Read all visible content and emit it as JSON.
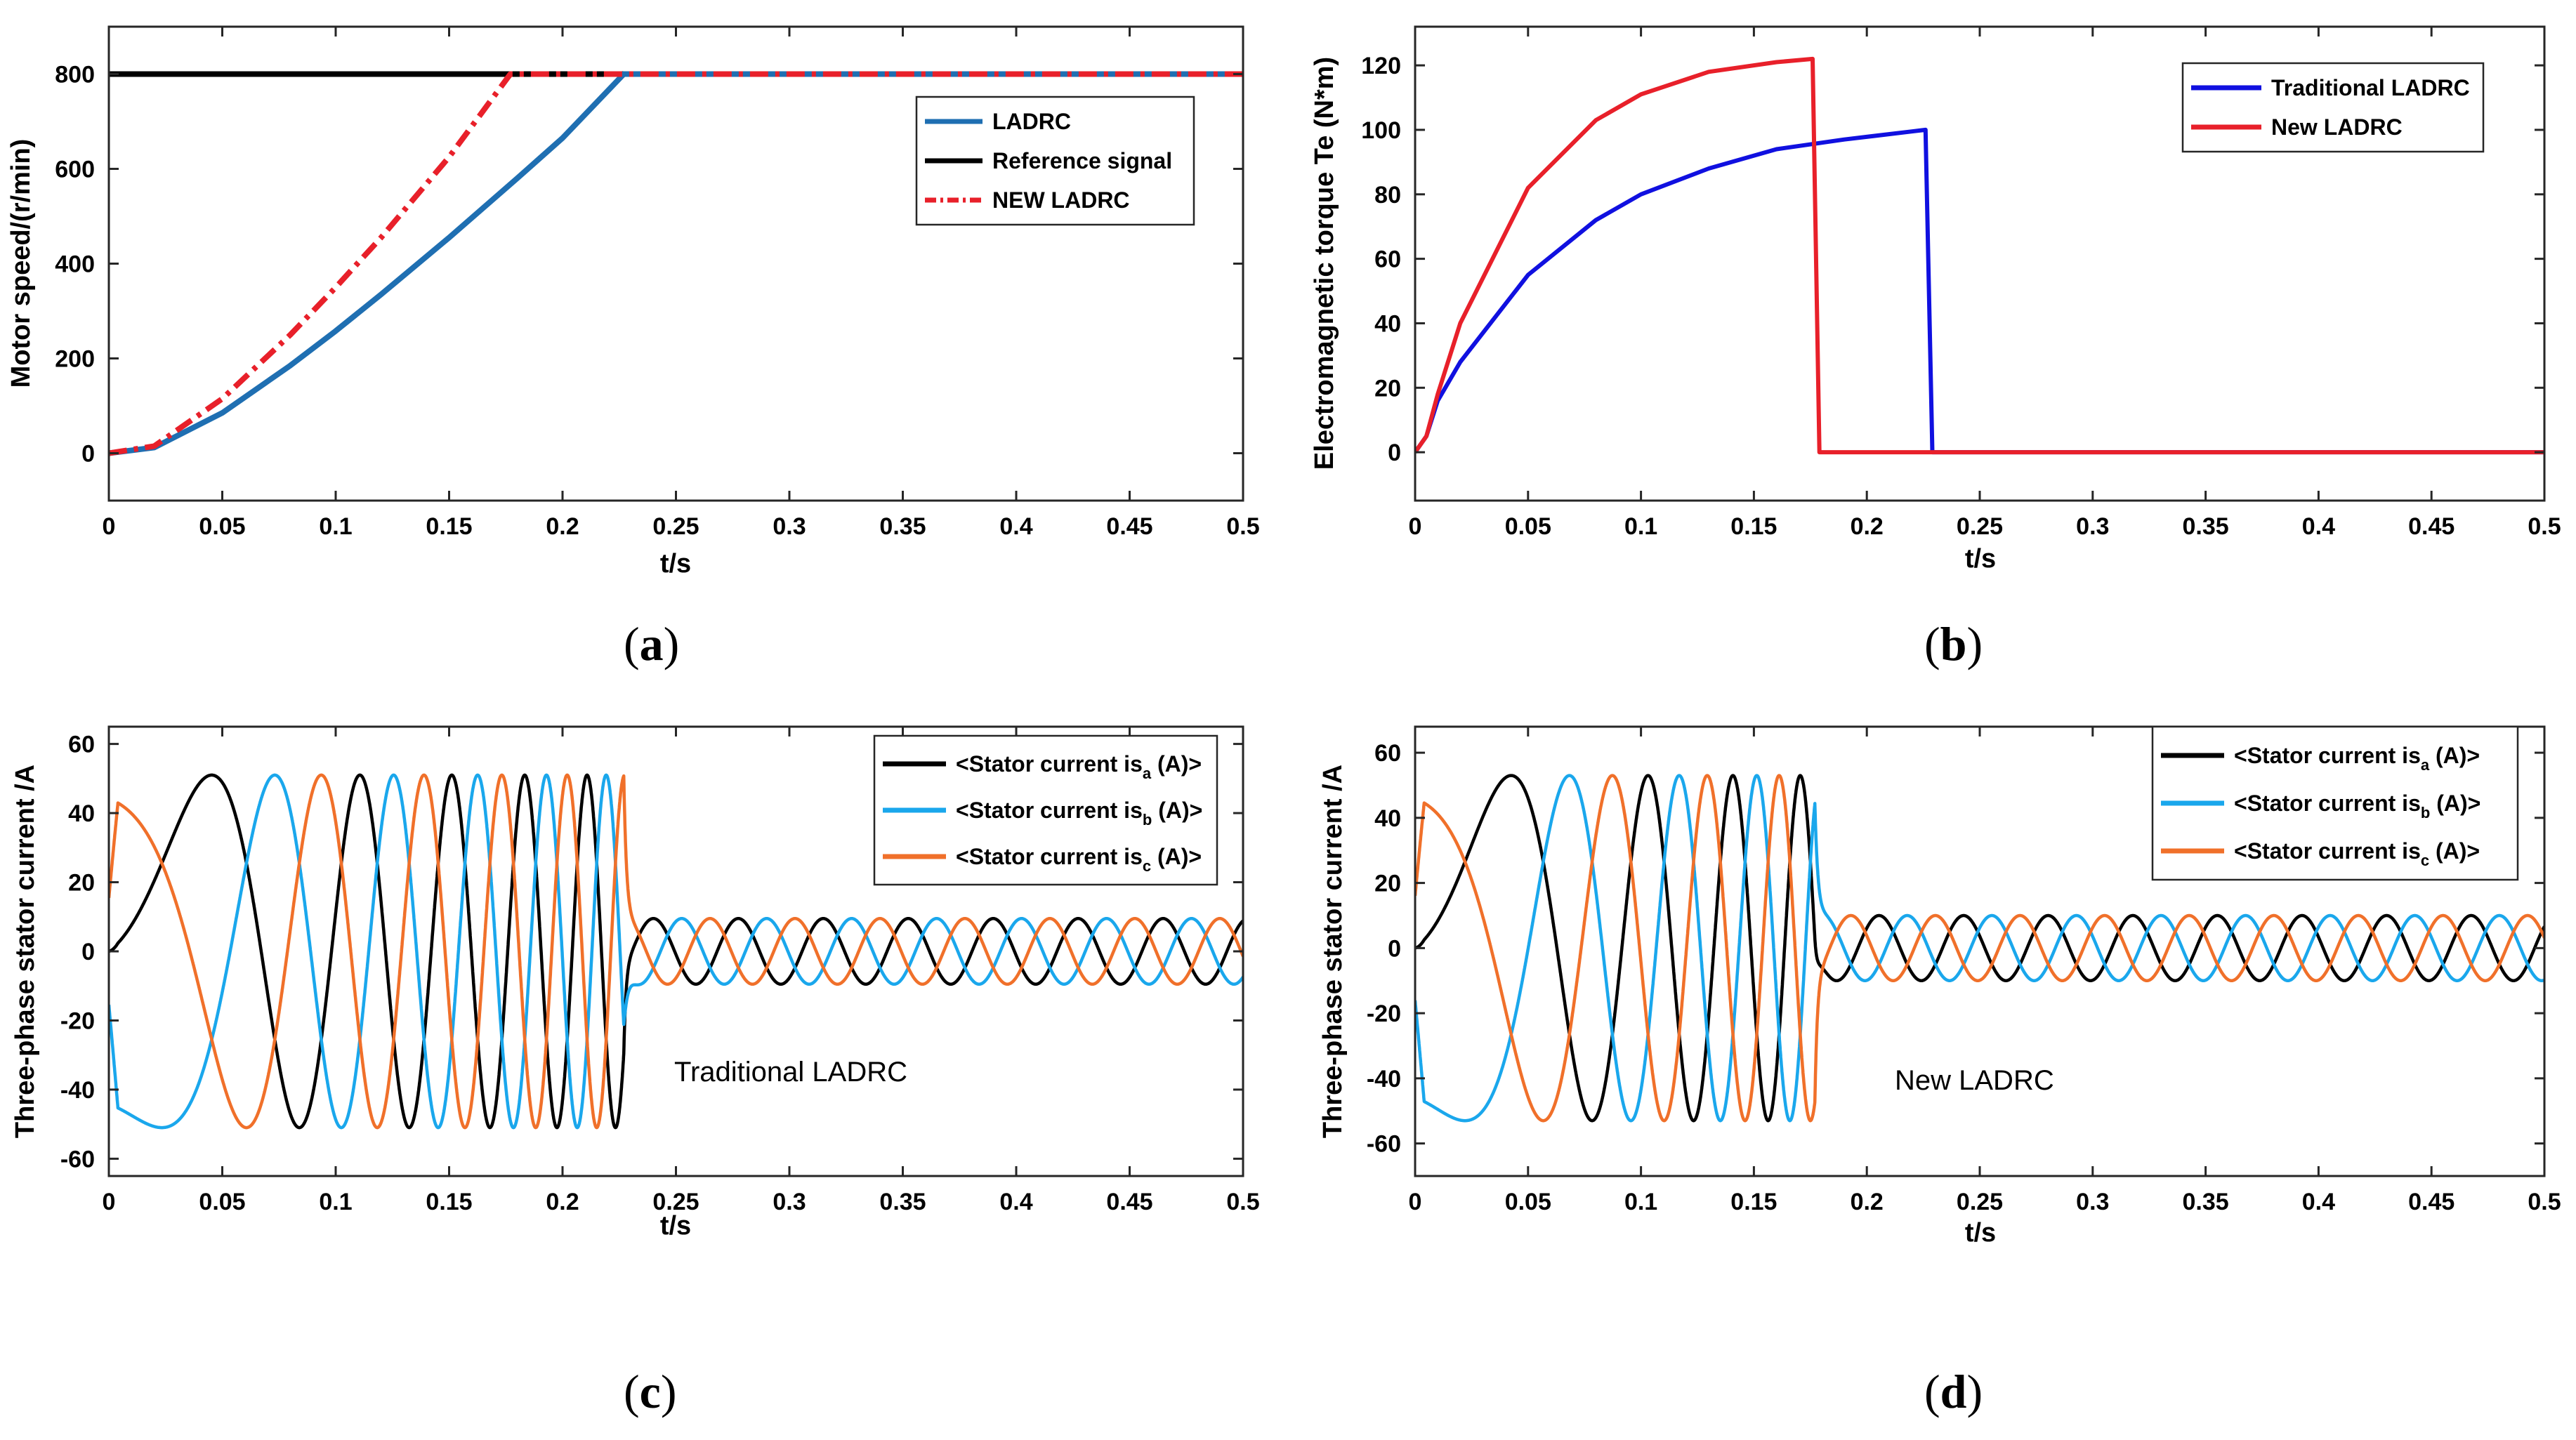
{
  "chart_data": [
    {
      "id": "a",
      "type": "line",
      "caption_letter": "a",
      "xlabel": "t/s",
      "ylabel": "Motor speed/(r/min)",
      "xlim": [
        0,
        0.5
      ],
      "ylim": [
        -100,
        900
      ],
      "xticks": [
        "0",
        "0.05",
        "0.1",
        "0.15",
        "0.2",
        "0.25",
        "0.3",
        "0.35",
        "0.4",
        "0.45",
        "0.5"
      ],
      "yticks": [
        "0",
        "200",
        "400",
        "600",
        "800"
      ],
      "legend_position": "top-right",
      "series": [
        {
          "name": "LADRC",
          "color": "#1f6fb2",
          "style": "solid",
          "x": [
            0,
            0.02,
            0.05,
            0.08,
            0.1,
            0.12,
            0.15,
            0.18,
            0.2,
            0.227,
            0.5
          ],
          "y": [
            0,
            12,
            85,
            185,
            258,
            335,
            455,
            580,
            665,
            800,
            800
          ]
        },
        {
          "name": "Reference signal",
          "color": "#000000",
          "style": "solid",
          "x": [
            0,
            0.5
          ],
          "y": [
            800,
            800
          ]
        },
        {
          "name": "NEW LADRC",
          "color": "#e8202a",
          "style": "dashdot",
          "x": [
            0,
            0.02,
            0.05,
            0.08,
            0.1,
            0.12,
            0.15,
            0.177,
            0.5
          ],
          "y": [
            0,
            15,
            115,
            250,
            350,
            455,
            625,
            800,
            800
          ]
        }
      ]
    },
    {
      "id": "b",
      "type": "line",
      "caption_letter": "b",
      "xlabel": "t/s",
      "ylabel": "Electromagnetic torque Te (N*m)",
      "xlim": [
        0,
        0.5
      ],
      "ylim": [
        -15,
        132
      ],
      "xticks": [
        "0",
        "0.05",
        "0.1",
        "0.15",
        "0.2",
        "0.25",
        "0.3",
        "0.35",
        "0.4",
        "0.45",
        "0.5"
      ],
      "yticks": [
        "0",
        "20",
        "40",
        "60",
        "80",
        "100",
        "120"
      ],
      "legend_position": "top-right",
      "series": [
        {
          "name": "Traditional LADRC",
          "color": "#1010e0",
          "style": "solid",
          "x": [
            0,
            0.005,
            0.01,
            0.02,
            0.05,
            0.08,
            0.1,
            0.13,
            0.16,
            0.19,
            0.22,
            0.226,
            0.229,
            0.5
          ],
          "y": [
            0,
            5,
            16,
            28,
            55,
            72,
            80,
            88,
            94,
            97,
            99.5,
            100,
            0,
            0
          ]
        },
        {
          "name": "New LADRC",
          "color": "#e8202a",
          "style": "solid",
          "x": [
            0,
            0.005,
            0.01,
            0.02,
            0.05,
            0.08,
            0.1,
            0.13,
            0.16,
            0.176,
            0.179,
            0.5
          ],
          "y": [
            0,
            5,
            18,
            40,
            82,
            103,
            111,
            118,
            121,
            122,
            0,
            0
          ]
        }
      ]
    },
    {
      "id": "c",
      "type": "line",
      "caption_letter": "c",
      "xlabel": "t/s",
      "ylabel": "Three-phase stator current /A",
      "xlim": [
        0,
        0.5
      ],
      "ylim": [
        -65,
        65
      ],
      "xticks": [
        "0",
        "0.05",
        "0.1",
        "0.15",
        "0.2",
        "0.25",
        "0.3",
        "0.35",
        "0.4",
        "0.45",
        "0.5"
      ],
      "yticks": [
        "-60",
        "-40",
        "-20",
        "0",
        "20",
        "40",
        "60"
      ],
      "legend_position": "top-right",
      "annotation": "Traditional LADRC",
      "switch_time": 0.227,
      "amplitude_accel": 51,
      "amplitude_steady": 9.5,
      "steady_frequency_hz": 26.7,
      "series": [
        {
          "name": "<Stator current is",
          "subscript": "a",
          "suffix": " (A)>",
          "color": "#000000",
          "phase_deg": 0
        },
        {
          "name": "<Stator current is",
          "subscript": "b",
          "suffix": " (A)>",
          "color": "#1aa7ec",
          "phase_deg": -120
        },
        {
          "name": "<Stator current is",
          "subscript": "c",
          "suffix": " (A)>",
          "color": "#f0702a",
          "phase_deg": 120
        }
      ]
    },
    {
      "id": "d",
      "type": "line",
      "caption_letter": "d",
      "xlabel": "t/s",
      "ylabel": "Three-phase stator current /A",
      "xlim": [
        0,
        0.5
      ],
      "ylim": [
        -70,
        68
      ],
      "xticks": [
        "0",
        "0.05",
        "0.1",
        "0.15",
        "0.2",
        "0.25",
        "0.3",
        "0.35",
        "0.4",
        "0.45",
        "0.5"
      ],
      "yticks": [
        "-60",
        "-40",
        "-20",
        "0",
        "20",
        "40",
        "60"
      ],
      "legend_position": "top-right",
      "annotation": "New LADRC",
      "switch_time": 0.177,
      "amplitude_accel": 53,
      "amplitude_steady": 10,
      "steady_frequency_hz": 26.7,
      "series": [
        {
          "name": "<Stator current is",
          "subscript": "a",
          "suffix": " (A)>",
          "color": "#000000",
          "phase_deg": 0
        },
        {
          "name": "<Stator current is",
          "subscript": "b",
          "suffix": " (A)>",
          "color": "#1aa7ec",
          "phase_deg": -120
        },
        {
          "name": "<Stator current is",
          "subscript": "c",
          "suffix": " (A)>",
          "color": "#f0702a",
          "phase_deg": 120
        }
      ]
    }
  ]
}
